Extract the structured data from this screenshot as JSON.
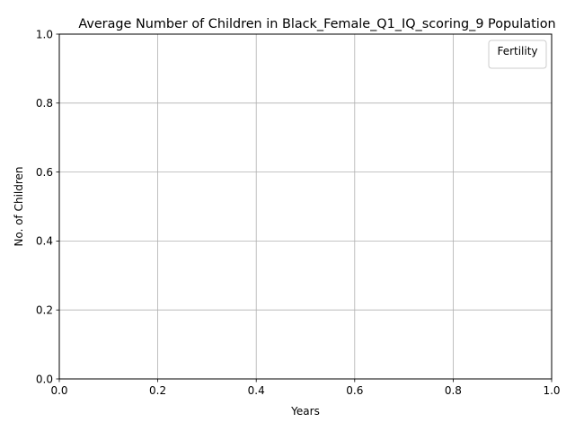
{
  "chart_data": {
    "type": "line",
    "title": "Average Number of Children in Black_Female_Q1_IQ_scoring_9 Population",
    "xlabel": "Years",
    "ylabel": "No. of Children",
    "xlim": [
      0,
      1
    ],
    "ylim": [
      0,
      1
    ],
    "x_ticks": [
      "0.0",
      "0.2",
      "0.4",
      "0.6",
      "0.8",
      "1.0"
    ],
    "y_ticks": [
      "0.0",
      "0.2",
      "0.4",
      "0.6",
      "0.8",
      "1.0"
    ],
    "grid": true,
    "legend": {
      "title": "Fertility",
      "placement": "top-right",
      "entries": []
    },
    "series": []
  }
}
